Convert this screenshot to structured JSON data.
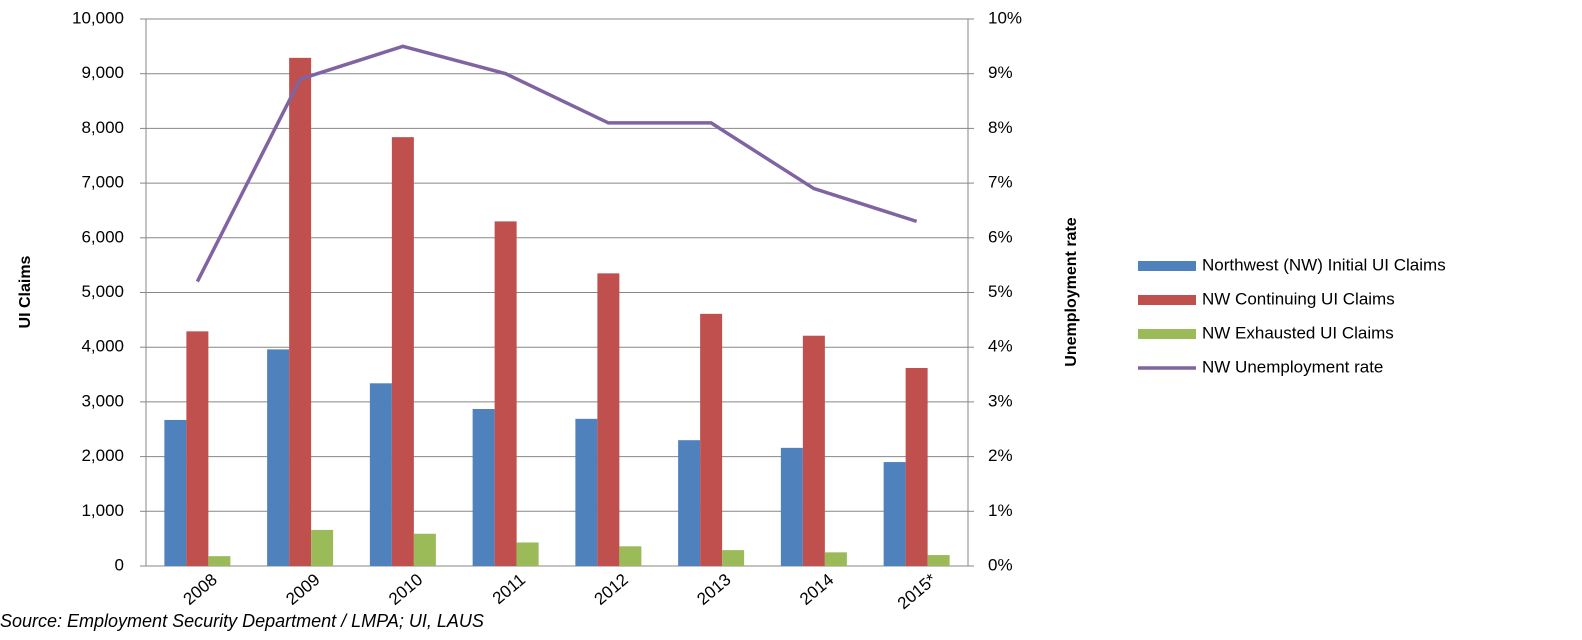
{
  "chart_data": {
    "type": "bar",
    "categories": [
      "2008",
      "2009",
      "2010",
      "2011",
      "2012",
      "2013",
      "2014",
      "2015*"
    ],
    "series": [
      {
        "name": "Northwest (NW) Initial UI Claims",
        "color": "#4f81bd",
        "values": [
          2670,
          3960,
          3340,
          2870,
          2690,
          2300,
          2160,
          1900
        ]
      },
      {
        "name": "NW Continuing UI Claims",
        "color": "#c0504d",
        "values": [
          4290,
          9290,
          7840,
          6300,
          5350,
          4610,
          4210,
          3620
        ]
      },
      {
        "name": "NW Exhausted UI Claims",
        "color": "#9bbb59",
        "values": [
          180,
          660,
          590,
          430,
          360,
          290,
          250,
          200
        ]
      },
      {
        "name": "NW Unemployment rate",
        "color": "#8064a2",
        "type": "line",
        "axis": "y2",
        "values": [
          5.2,
          8.9,
          9.5,
          9.0,
          8.1,
          8.1,
          6.9,
          6.3
        ]
      }
    ],
    "ylabel": "UI Claims",
    "y2label": "Unemployment rate",
    "ylim": [
      0,
      10000
    ],
    "yticks": [
      0,
      {
        "value": 1000,
        "label": "1,000"
      },
      {
        "value": 2000,
        "label": "2,000"
      },
      {
        "value": 3000,
        "label": "3,000"
      },
      {
        "value": 4000,
        "label": "4,000"
      },
      {
        "value": 5000,
        "label": "5,000"
      },
      {
        "value": 6000,
        "label": "6,000"
      },
      {
        "value": 7000,
        "label": "7,000"
      },
      {
        "value": 8000,
        "label": "8,000"
      },
      {
        "value": 9000,
        "label": "9,000"
      },
      {
        "value": 10000,
        "label": "10,000"
      }
    ],
    "y2lim": [
      0,
      10
    ],
    "y2ticks": [
      {
        "value": 0,
        "label": "0%"
      },
      {
        "value": 1,
        "label": "1%"
      },
      {
        "value": 2,
        "label": "2%"
      },
      {
        "value": 3,
        "label": "3%"
      },
      {
        "value": 4,
        "label": "4%"
      },
      {
        "value": 5,
        "label": "5%"
      },
      {
        "value": 6,
        "label": "6%"
      },
      {
        "value": 7,
        "label": "7%"
      },
      {
        "value": 8,
        "label": "8%"
      },
      {
        "value": 9,
        "label": "9%"
      },
      {
        "value": 10,
        "label": "10%"
      }
    ],
    "grid": true,
    "legend": "right",
    "source": "Source: Employment Security Department / LMPA;  UI,  LAUS"
  }
}
